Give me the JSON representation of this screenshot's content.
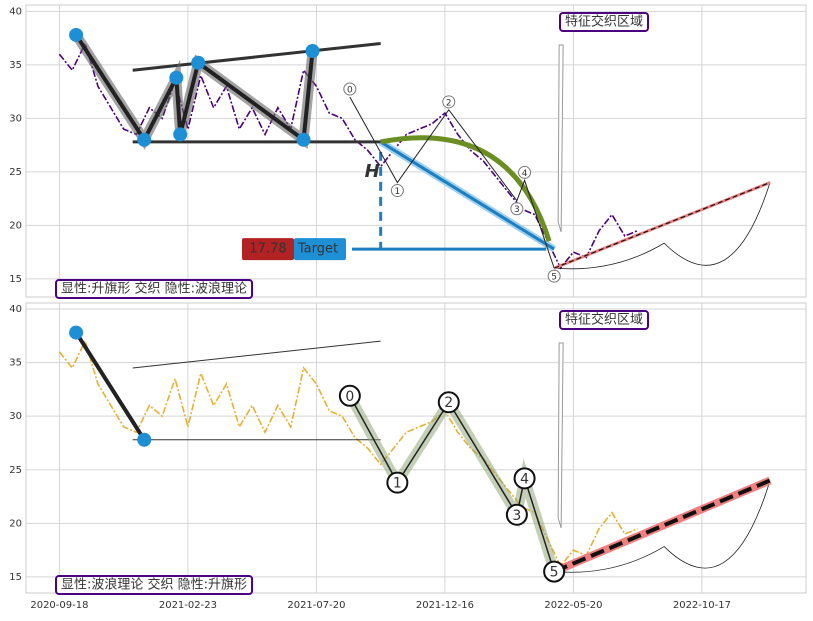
{
  "chart_data": [
    {
      "type": "line",
      "ylim": [
        13.3,
        40.6
      ],
      "yticks": [
        15,
        20,
        25,
        30,
        35,
        40
      ],
      "xlim": [
        -26,
        581
      ],
      "grid": true,
      "zone_label": "特征交织区域",
      "pattern_label": "显性:升旗形 交织 隐性:波浪理论",
      "price": {
        "color": "#4b0082",
        "x": [
          0,
          10,
          20,
          30,
          40,
          50,
          60,
          70,
          80,
          90,
          100,
          110,
          120,
          130,
          140,
          150,
          160,
          170,
          180,
          190,
          200,
          210,
          220,
          230,
          240,
          250,
          260,
          270,
          280,
          290,
          300,
          310,
          320,
          330,
          340,
          350,
          360,
          370,
          380,
          390,
          400,
          410,
          420,
          430,
          440,
          450
        ],
        "values": [
          36,
          34.5,
          37,
          33,
          31,
          29,
          28.5,
          31,
          30,
          33.5,
          29,
          34,
          31,
          33,
          29,
          31,
          28.5,
          31,
          29,
          34.5,
          33,
          30.5,
          30,
          28,
          27,
          25.5,
          27,
          28.5,
          29,
          29.5,
          30.5,
          28.5,
          27,
          26,
          24.5,
          23,
          21.5,
          21,
          18.5,
          16,
          17.5,
          17,
          19.5,
          21,
          19,
          19.5
        ]
      },
      "flag_points": {
        "x": [
          13,
          66,
          91,
          94,
          108,
          190,
          197
        ],
        "values": [
          37.8,
          28,
          33.8,
          28.5,
          35.2,
          28,
          36.3
        ]
      },
      "flag_upper": {
        "x": [
          57,
          250
        ],
        "values": [
          34.5,
          37
        ]
      },
      "flag_lower": {
        "x": [
          57,
          250
        ],
        "values": [
          27.8,
          27.8
        ]
      },
      "wave": {
        "labels": [
          "0",
          "1",
          "2",
          "3",
          "4",
          "5"
        ],
        "x": [
          226,
          263,
          303,
          356,
          362,
          385
        ],
        "values": [
          32,
          24,
          30.8,
          22.3,
          24.2,
          16
        ]
      },
      "target": {
        "x": [
          250,
          385
        ],
        "values": [
          27.8,
          17.78
        ],
        "label": "Target",
        "value_label": "17.78",
        "height_label": "H"
      },
      "projection": {
        "x": [
          385,
          553
        ],
        "values": [
          16,
          24
        ]
      }
    },
    {
      "type": "line",
      "ylim": [
        13.5,
        40.56
      ],
      "yticks": [
        15,
        20,
        25,
        30,
        35,
        40
      ],
      "xlim": [
        -26,
        581
      ],
      "grid": true,
      "xticks": [
        {
          "value": 0,
          "label": "2020-09-18"
        },
        {
          "value": 100,
          "label": "2021-02-23"
        },
        {
          "value": 200,
          "label": "2021-07-20"
        },
        {
          "value": 300,
          "label": "2021-12-16"
        },
        {
          "value": 400,
          "label": "2022-05-20"
        },
        {
          "value": 500,
          "label": "2022-10-17"
        }
      ],
      "zone_label": "特征交织区域",
      "pattern_label": "显性:波浪理论 交织 隐性:升旗形",
      "price": {
        "color": "#e8b030",
        "x": [
          0,
          10,
          20,
          30,
          40,
          50,
          60,
          70,
          80,
          90,
          100,
          110,
          120,
          130,
          140,
          150,
          160,
          170,
          180,
          190,
          200,
          210,
          220,
          230,
          240,
          250,
          260,
          270,
          280,
          290,
          300,
          310,
          320,
          330,
          340,
          350,
          360,
          370,
          380,
          390,
          400,
          410,
          420,
          430,
          440,
          450
        ],
        "values": [
          36,
          34.5,
          37,
          33,
          31,
          29,
          28.5,
          31,
          30,
          33.5,
          29,
          34,
          31,
          33,
          29,
          31,
          28.5,
          31,
          29,
          34.5,
          33,
          30.5,
          30,
          28,
          27,
          25.5,
          27,
          28.5,
          29,
          29.5,
          30.5,
          28.5,
          27,
          26,
          24.5,
          23,
          21.5,
          21,
          18.5,
          16,
          17.5,
          17,
          19.5,
          21,
          19,
          19.5
        ]
      },
      "flag_points": {
        "x": [
          13,
          66
        ],
        "values": [
          37.8,
          27.8
        ]
      },
      "flag_upper": {
        "x": [
          57,
          250
        ],
        "values": [
          34.5,
          37
        ]
      },
      "flag_lower": {
        "x": [
          57,
          250
        ],
        "values": [
          27.8,
          27.8
        ]
      },
      "wave": {
        "labels": [
          "0",
          "1",
          "2",
          "3",
          "4",
          "5"
        ],
        "x": [
          226,
          263,
          303,
          356,
          362,
          385
        ],
        "values": [
          31.9,
          23.8,
          31.3,
          20.8,
          24.2,
          15.5
        ]
      },
      "projection": {
        "x": [
          385,
          553
        ],
        "values": [
          15.5,
          24
        ]
      }
    }
  ]
}
